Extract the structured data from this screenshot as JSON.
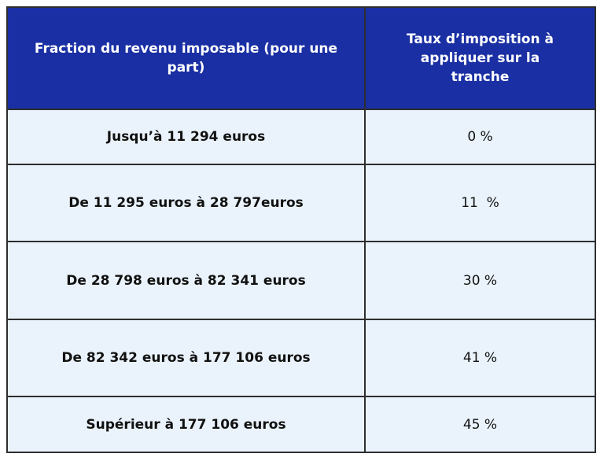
{
  "table": {
    "headers": [
      "Fraction du revenu imposable (pour une part)",
      "Taux d’imposition à appliquer sur la tranche"
    ],
    "rows": [
      [
        "Jusqu’à 11 294 euros",
        "0 %"
      ],
      [
        "De 11 295 euros à 28 797euros",
        "11  %"
      ],
      [
        "De 28 798 euros à 82 341 euros",
        "30 %"
      ],
      [
        "De 82 342 euros à 177 106 euros",
        "41 %"
      ],
      [
        "Supérieur à 177 106 euros",
        "45 %"
      ]
    ]
  },
  "colors": {
    "header_bg": "#1a2fa3",
    "header_text": "#ffffff",
    "row_bg": "#eaf3fb",
    "border": "#2e2e2e"
  }
}
